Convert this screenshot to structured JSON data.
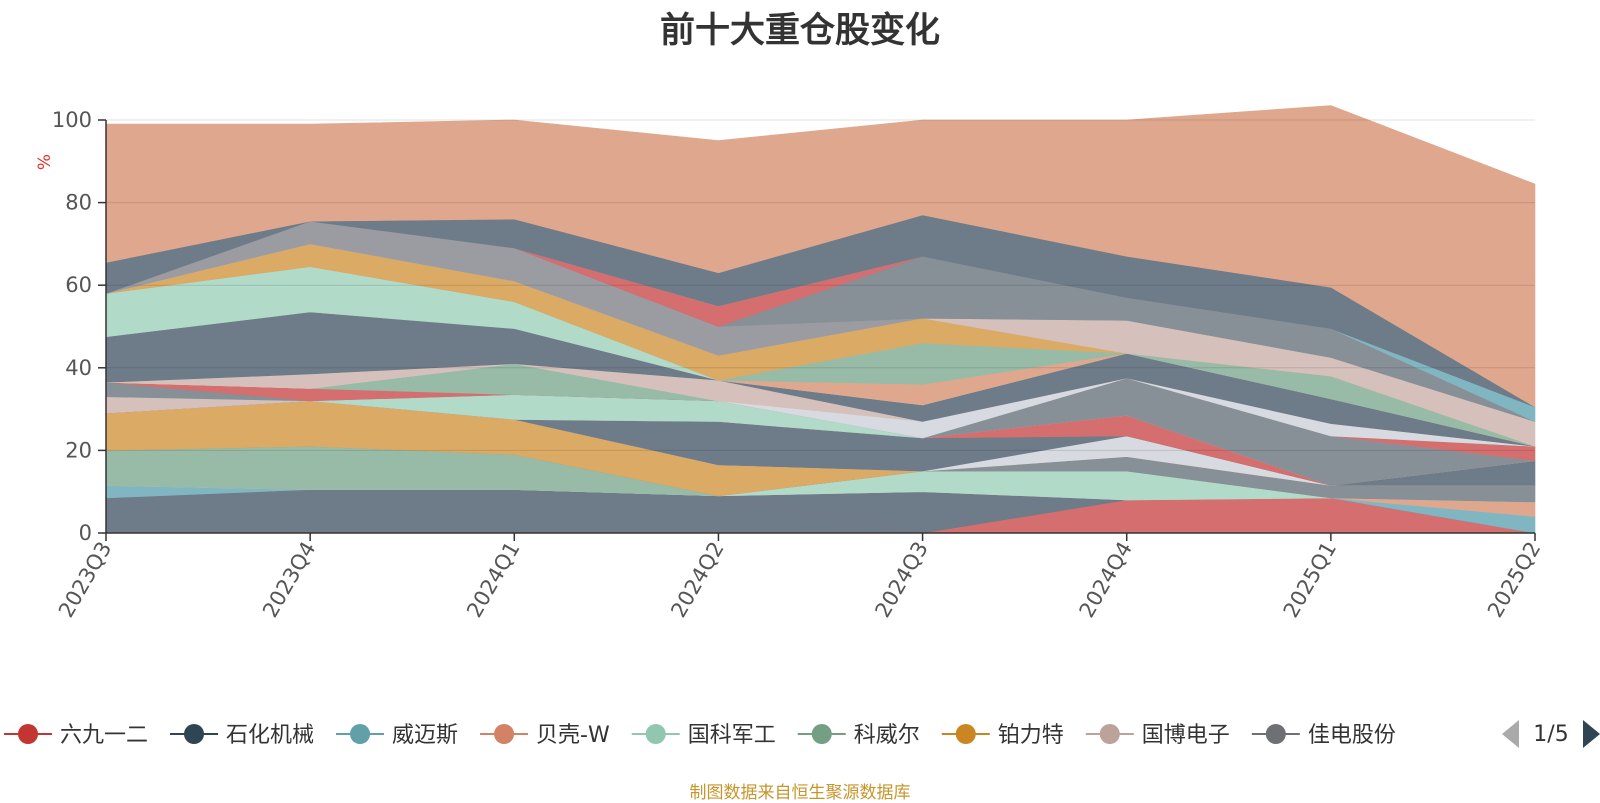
{
  "chart_data": {
    "type": "area",
    "stacked": true,
    "title": "前十大重仓股变化",
    "ylabel": "%",
    "ylim": [
      0,
      100
    ],
    "yticks": [
      0,
      20,
      40,
      60,
      80,
      100
    ],
    "grid": true,
    "categories": [
      "2023Q3",
      "2023Q4",
      "2024Q1",
      "2024Q2",
      "2024Q3",
      "2024Q4",
      "2025Q1",
      "2025Q2"
    ],
    "series": [
      {
        "name": "",
        "color": "#6e7b88",
        "values": [
          8.5,
          10.5,
          10.5,
          9.0,
          0,
          0,
          0,
          0
        ]
      },
      {
        "name": "六九一二",
        "color": "#d56e6e",
        "values": [
          0,
          0,
          0,
          0,
          0,
          8.0,
          8.5,
          0
        ]
      },
      {
        "name": "",
        "color": "#6e7b88",
        "values": [
          0,
          0,
          0,
          0,
          10.0,
          0,
          0,
          0
        ]
      },
      {
        "name": "威迈斯",
        "color": "#7fb6c2",
        "values": [
          3.0,
          0,
          0,
          0,
          0,
          0,
          0,
          4.0
        ]
      },
      {
        "name": "贝壳-W",
        "color": "#dfa88e",
        "values": [
          0,
          0,
          0,
          0,
          0,
          0,
          0,
          3.5
        ]
      },
      {
        "name": "国科军工",
        "color": "#b2dac9",
        "values": [
          0,
          0,
          0,
          0,
          5.0,
          7.0,
          0,
          0
        ]
      },
      {
        "name": "科威尔",
        "color": "#97bba6",
        "values": [
          8.5,
          10.5,
          8.5,
          0,
          0,
          0,
          0,
          0
        ]
      },
      {
        "name": "",
        "color": "#878f97",
        "values": [
          0,
          0,
          0,
          0,
          0,
          3.5,
          3.0,
          4.0
        ]
      },
      {
        "name": "铂力特",
        "color": "#dbaa64",
        "values": [
          9.0,
          11.0,
          8.5,
          7.5,
          0,
          0,
          0,
          0
        ]
      },
      {
        "name": "",
        "color": "#d7dae0",
        "values": [
          0,
          0,
          0,
          0,
          0,
          5.0,
          0,
          0
        ]
      },
      {
        "name": "",
        "color": "#6e7b88",
        "values": [
          0,
          0,
          0,
          10.5,
          8.0,
          0,
          0,
          6.0
        ]
      },
      {
        "name": "",
        "color": "#d56e6e",
        "values": [
          0,
          0,
          0,
          0,
          0,
          5.0,
          0,
          0
        ]
      },
      {
        "name": "国博电子",
        "color": "#d5c0bb",
        "values": [
          4.0,
          0,
          0,
          0,
          0,
          0,
          0,
          0
        ]
      },
      {
        "name": "",
        "color": "#878f97",
        "values": [
          0,
          0,
          0,
          0,
          0,
          9.0,
          12.0,
          0
        ]
      },
      {
        "name": "",
        "color": "#b2dac9",
        "values": [
          0,
          0,
          6.0,
          5.0,
          0,
          0,
          0,
          0
        ]
      },
      {
        "name": "佳电股份",
        "color": "#878f97",
        "values": [
          3.5,
          0,
          0,
          0,
          0,
          0,
          0,
          0
        ]
      },
      {
        "name": "",
        "color": "#d56e6e",
        "values": [
          0,
          3.0,
          0,
          0,
          0,
          0,
          0,
          3.5
        ]
      },
      {
        "name": "",
        "color": "#97bba6",
        "values": [
          0,
          0,
          7.5,
          0,
          0,
          0,
          0,
          0
        ]
      },
      {
        "name": "",
        "color": "#d7dae0",
        "values": [
          0,
          0,
          0,
          0,
          4.0,
          0,
          3.0,
          0
        ]
      },
      {
        "name": "",
        "color": "#d5c0bb",
        "values": [
          0,
          3.5,
          0,
          5.0,
          0,
          0,
          0,
          0
        ]
      },
      {
        "name": "",
        "color": "#6e7b88",
        "values": [
          11.0,
          15.0,
          8.5,
          0,
          4.0,
          6.0,
          6.0,
          0
        ]
      },
      {
        "name": "",
        "color": "#b2dac9",
        "values": [
          10.5,
          11.0,
          6.5,
          0,
          0,
          0,
          0,
          0
        ]
      },
      {
        "name": "",
        "color": "#dfa88e",
        "values": [
          0,
          0,
          0,
          0,
          5.0,
          0,
          0,
          0
        ]
      },
      {
        "name": "",
        "color": "#97bba6",
        "values": [
          0,
          0,
          0,
          0,
          10.0,
          0,
          5.5,
          0
        ]
      },
      {
        "name": "",
        "color": "#dbaa64",
        "values": [
          0,
          5.5,
          5.0,
          6.0,
          6.0,
          0,
          0,
          0
        ]
      },
      {
        "name": "",
        "color": "#d5c0bb",
        "values": [
          0,
          0,
          0,
          0,
          0,
          8.0,
          4.5,
          6.0
        ]
      },
      {
        "name": "",
        "color": "#9b9ca1",
        "values": [
          0,
          5.5,
          8.0,
          7.0,
          0,
          0,
          0,
          0
        ]
      },
      {
        "name": "",
        "color": "#878f97",
        "values": [
          0,
          0,
          0,
          0,
          15.0,
          5.5,
          7.0,
          0
        ]
      },
      {
        "name": "",
        "color": "#d56e6e",
        "values": [
          0,
          0,
          0,
          5.0,
          0,
          0,
          0,
          0
        ]
      },
      {
        "name": "",
        "color": "#7fb6c2",
        "values": [
          0,
          0,
          0,
          0,
          0,
          0,
          0,
          3.5
        ]
      },
      {
        "name": "",
        "color": "#6e7b88",
        "values": [
          7.5,
          0,
          7.0,
          8.0,
          10.0,
          10.0,
          10.0,
          0
        ]
      },
      {
        "name": "",
        "color": "#dfa88e",
        "values": [
          33.5,
          23.5,
          24.0,
          32.0,
          23.0,
          33.0,
          44.0,
          54.0
        ]
      }
    ],
    "legend": {
      "position": "bottom",
      "items": [
        {
          "name": "六九一二",
          "color": "#c23531"
        },
        {
          "name": "石化机械",
          "color": "#2f4554"
        },
        {
          "name": "威迈斯",
          "color": "#61a0a8"
        },
        {
          "name": "贝壳-W",
          "color": "#d48265"
        },
        {
          "name": "国科军工",
          "color": "#91c7ae"
        },
        {
          "name": "科威尔",
          "color": "#749f83"
        },
        {
          "name": "铂力特",
          "color": "#ca8622"
        },
        {
          "name": "国博电子",
          "color": "#bda29a"
        },
        {
          "name": "佳电股份",
          "color": "#6e7074"
        }
      ],
      "page": "1/5"
    }
  },
  "footer": "制图数据来自恒生聚源数据库"
}
